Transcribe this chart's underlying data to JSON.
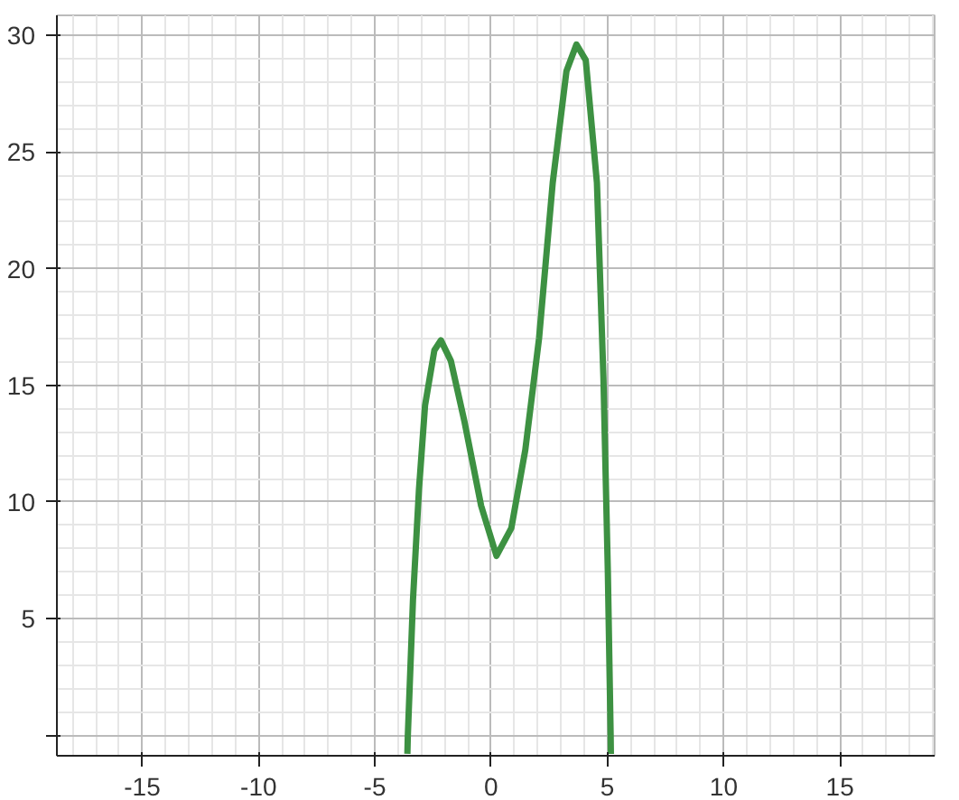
{
  "chart_data": {
    "type": "line",
    "x": [
      -3.6,
      -3.58,
      -3.36,
      -3.1,
      -2.84,
      -2.44,
      -2.16,
      -1.73,
      -1.14,
      -0.43,
      0.23,
      0.87,
      1.47,
      2.06,
      2.65,
      3.24,
      3.67,
      4.07,
      4.55,
      4.83,
      5.02,
      5.14,
      5.15
    ],
    "series": [
      {
        "color": "#3d9142",
        "values": [
          -0.8,
          0,
          5.78,
          10.56,
          14.14,
          16.5,
          16.93,
          16.05,
          13.42,
          9.84,
          7.69,
          8.88,
          12.23,
          17.0,
          23.69,
          28.47,
          29.61,
          28.94,
          23.69,
          15.33,
          6.98,
          0,
          -0.8
        ]
      }
    ],
    "xlim": [
      -18.67,
      19.07
    ],
    "ylim": [
      -0.88,
      30.86
    ],
    "xticks": [
      -15,
      -10,
      -5,
      0,
      5,
      10,
      15
    ],
    "yticks": [
      {
        "value": 0,
        "label": null
      },
      5,
      10,
      15,
      20,
      25,
      30
    ],
    "grid": true,
    "marker": "none",
    "line_style": "solid"
  }
}
